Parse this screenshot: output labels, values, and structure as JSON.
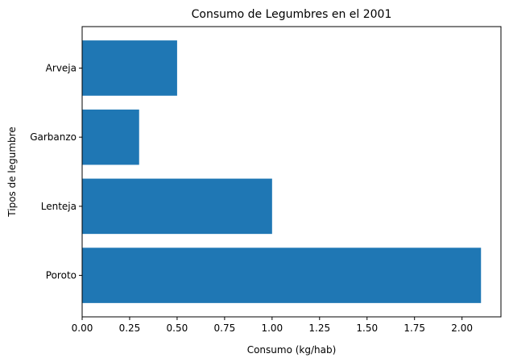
{
  "chart_data": {
    "type": "bar",
    "orientation": "horizontal",
    "title": "Consumo de Legumbres en el 2001",
    "xlabel": "Consumo (kg/hab)",
    "ylabel": "Tipos de legumbre",
    "categories": [
      "Poroto",
      "Lenteja",
      "Garbanzo",
      "Arveja"
    ],
    "values": [
      2.1,
      1.0,
      0.3,
      0.5
    ],
    "xlim": [
      0,
      2.205
    ],
    "xticks": [
      "0.00",
      "0.25",
      "0.50",
      "0.75",
      "1.00",
      "1.25",
      "1.50",
      "1.75",
      "2.00"
    ],
    "bar_color": "#1f77b4",
    "grid": false,
    "legend": false
  }
}
